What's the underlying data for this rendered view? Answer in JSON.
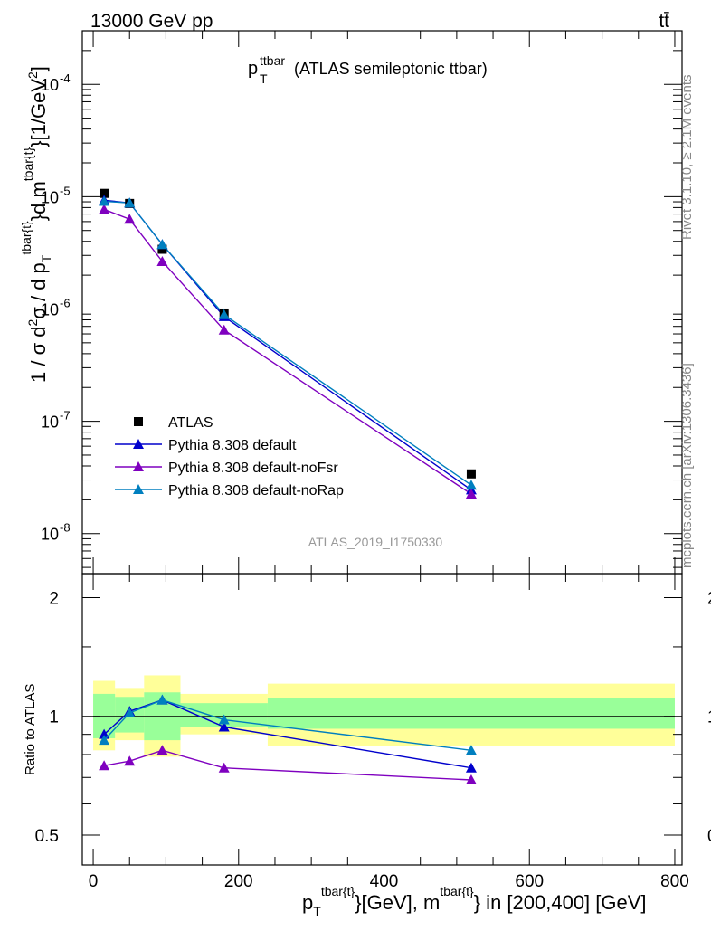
{
  "header": {
    "left": "13000 GeV pp",
    "right": "tt̄"
  },
  "plot_title": {
    "main": "p",
    "sub": "T",
    "sup": "ttbar",
    "rest": "(ATLAS semileptonic ttbar)"
  },
  "side_labels": {
    "rivet": "Rivet 3.1.10, ≥ 2.1M events",
    "mcplots": "mcplots.cern.ch [arXiv:1306.3436]"
  },
  "analysis_id": "ATLAS_2019_I1750330",
  "ylabel_main": {
    "p1": "1 / σ d",
    "p2": "σ / d p",
    "p3": "d m",
    "p4": "[1/GeV",
    "p5": "]",
    "exp2a": "2",
    "exp2b": "2",
    "subT": "T",
    "sup1": "tbar{t}",
    "brace": "}",
    "sup2": "tbar{t}",
    "brace2": "}"
  },
  "ylabel_ratio": "Ratio to ATLAS",
  "xlabel": {
    "p1": "p",
    "subT": "T",
    "sup1": "tbar{t}",
    "p2": "}[GeV], m",
    "sup2": "tbar{t}",
    "p3": "} in [200,400] [GeV]"
  },
  "colors": {
    "atlas": "#000000",
    "default": "#0000cc",
    "noFsr": "#7f00bf",
    "noRap": "#007fbf",
    "band_inner": "#99ff99",
    "band_outer": "#ffff99"
  },
  "chart_data": [
    {
      "type": "line",
      "yscale": "log",
      "xlim": [
        -15,
        810
      ],
      "ylim": [
        4.4e-09,
        0.0003
      ],
      "y_ticks": [
        {
          "label": "10",
          "exp": "-8",
          "value": 1e-08
        },
        {
          "label": "10",
          "exp": "-7",
          "value": 1e-07
        },
        {
          "label": "10",
          "exp": "-6",
          "value": 1e-06
        },
        {
          "label": "10",
          "exp": "-5",
          "value": 1e-05
        },
        {
          "label": "10",
          "exp": "-4",
          "value": 0.0001
        }
      ],
      "legend_position": "bottom-left",
      "series": [
        {
          "name": "ATLAS",
          "key": "atlas",
          "marker": "square",
          "x": [
            15,
            50,
            95,
            180,
            520
          ],
          "y": [
            1.07e-05,
            8.7e-06,
            3.4e-06,
            9.2e-07,
            3.4e-08
          ]
        },
        {
          "name": "Pythia 8.308 default",
          "key": "default",
          "marker": "triangle",
          "x": [
            15,
            50,
            95,
            180,
            520
          ],
          "y": [
            9.3e-06,
            8.8e-06,
            3.75e-06,
            8.55e-07,
            2.45e-08
          ]
        },
        {
          "name": "Pythia 8.308 default-noFsr",
          "key": "noFsr",
          "marker": "triangle",
          "x": [
            15,
            50,
            95,
            180,
            520
          ],
          "y": [
            7.7e-06,
            6.3e-06,
            2.65e-06,
            6.5e-07,
            2.25e-08
          ]
        },
        {
          "name": "Pythia 8.308 default-noRap",
          "key": "noRap",
          "marker": "triangle",
          "x": [
            15,
            50,
            95,
            180,
            520
          ],
          "y": [
            9.1e-06,
            8.8e-06,
            3.75e-06,
            8.9e-07,
            2.7e-08
          ]
        }
      ]
    },
    {
      "type": "line",
      "yscale": "log",
      "xlim": [
        -15,
        810
      ],
      "ylim": [
        0.42,
        2.3
      ],
      "x_ticks": [
        0,
        200,
        400,
        600,
        800
      ],
      "y_ticks": [
        {
          "label": "0.5",
          "value": 0.5
        },
        {
          "label": "1",
          "value": 1.0
        },
        {
          "label": "2",
          "value": 2.0
        }
      ],
      "bands": [
        {
          "x0": 0,
          "x1": 30,
          "inner": [
            0.88,
            1.14
          ],
          "outer": [
            0.82,
            1.23
          ]
        },
        {
          "x0": 30,
          "x1": 70,
          "inner": [
            0.91,
            1.12
          ],
          "outer": [
            0.87,
            1.18
          ]
        },
        {
          "x0": 70,
          "x1": 120,
          "inner": [
            0.87,
            1.15
          ],
          "outer": [
            0.79,
            1.27
          ]
        },
        {
          "x0": 120,
          "x1": 240,
          "inner": [
            0.94,
            1.08
          ],
          "outer": [
            0.9,
            1.14
          ]
        },
        {
          "x0": 240,
          "x1": 800,
          "inner": [
            0.93,
            1.11
          ],
          "outer": [
            0.84,
            1.21
          ]
        }
      ],
      "series": [
        {
          "name": "Pythia 8.308 default",
          "key": "default",
          "x": [
            15,
            50,
            95,
            180,
            520
          ],
          "y": [
            0.9,
            1.03,
            1.1,
            0.94,
            0.74
          ]
        },
        {
          "name": "Pythia 8.308 default-noFsr",
          "key": "noFsr",
          "x": [
            15,
            50,
            95,
            180,
            520
          ],
          "y": [
            0.75,
            0.77,
            0.82,
            0.74,
            0.69
          ]
        },
        {
          "name": "Pythia 8.308 default-noRap",
          "key": "noRap",
          "x": [
            15,
            50,
            95,
            180,
            520
          ],
          "y": [
            0.87,
            1.02,
            1.1,
            0.98,
            0.82
          ]
        }
      ]
    }
  ]
}
